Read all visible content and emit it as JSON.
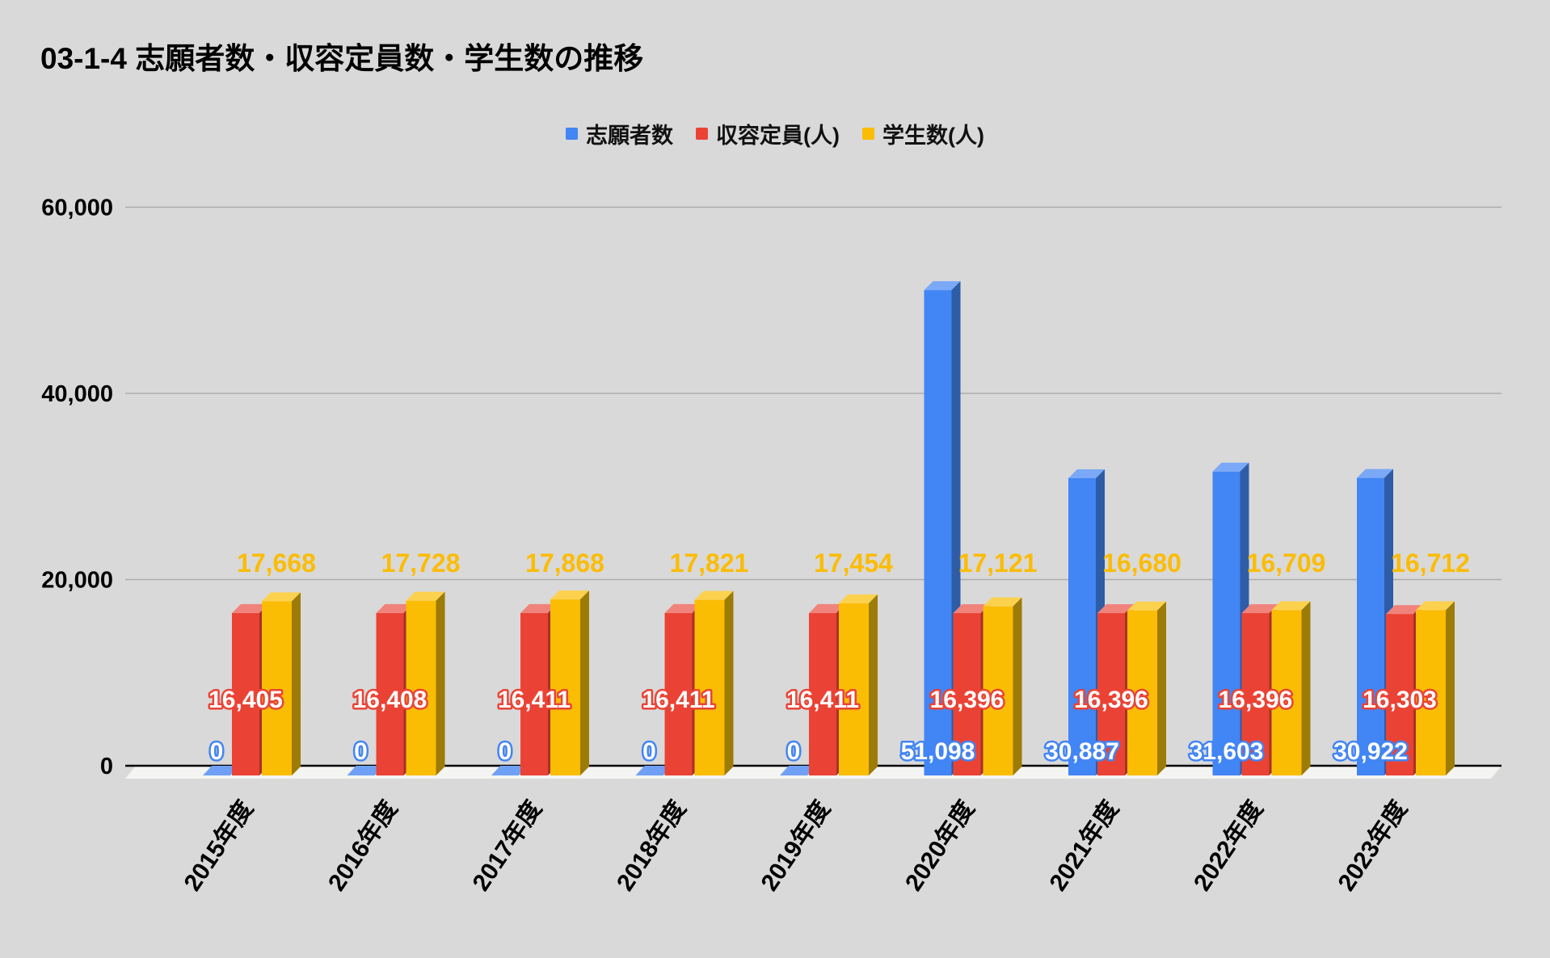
{
  "title": "03-1-4 志願者数・収容定員数・学生数の推移",
  "colors": {
    "background": "#D9D9D9",
    "gridline": "#ACACAC",
    "axis_line": "#000000",
    "floor": "#F4F4F2",
    "tick_text": "#000000",
    "blue": "#4285F4",
    "red": "#EA4335",
    "yellow": "#FBBC04"
  },
  "legend": [
    {
      "label": "志願者数",
      "color": "#4285F4"
    },
    {
      "label": "収容定員(人)",
      "color": "#EA4335"
    },
    {
      "label": "学生数(人)",
      "color": "#FBBC04"
    }
  ],
  "y_axis": {
    "tick_labels": [
      "0",
      "20,000",
      "40,000",
      "60,000"
    ],
    "tick_values": [
      0,
      20000,
      40000,
      60000
    ]
  },
  "chart_data": {
    "type": "bar",
    "style": "3d-column",
    "title": "03-1-4 志願者数・収容定員数・学生数の推移",
    "categories": [
      "2015年度",
      "2016年度",
      "2017年度",
      "2018年度",
      "2019年度",
      "2020年度",
      "2021年度",
      "2022年度",
      "2023年度"
    ],
    "series": [
      {
        "name": "志願者数",
        "color": "#4285F4",
        "values": [
          0,
          0,
          0,
          0,
          0,
          51098,
          30887,
          31603,
          30922
        ],
        "labels": [
          "0",
          "0",
          "0",
          "0",
          "0",
          "51,098",
          "30,887",
          "31,603",
          "30,922"
        ],
        "label_style": "white-fill-blue-outline"
      },
      {
        "name": "収容定員(人)",
        "color": "#EA4335",
        "values": [
          16405,
          16408,
          16411,
          16411,
          16411,
          16396,
          16396,
          16396,
          16303
        ],
        "labels": [
          "16,405",
          "16,408",
          "16,411",
          "16,411",
          "16,411",
          "16,396",
          "16,396",
          "16,396",
          "16,303"
        ],
        "label_style": "white-fill-red-outline"
      },
      {
        "name": "学生数(人)",
        "color": "#FBBC04",
        "values": [
          17668,
          17728,
          17868,
          17821,
          17454,
          17121,
          16680,
          16709,
          16712
        ],
        "labels": [
          "17,668",
          "17,728",
          "17,868",
          "17,821",
          "17,454",
          "17,121",
          "16,680",
          "16,709",
          "16,712"
        ],
        "label_style": "yellow-fill"
      }
    ],
    "xlabel": "",
    "ylabel": "",
    "ylim": [
      0,
      60000
    ],
    "grid": "horizontal",
    "legend_position": "top-center",
    "x_tick_rotation_deg": -56
  }
}
